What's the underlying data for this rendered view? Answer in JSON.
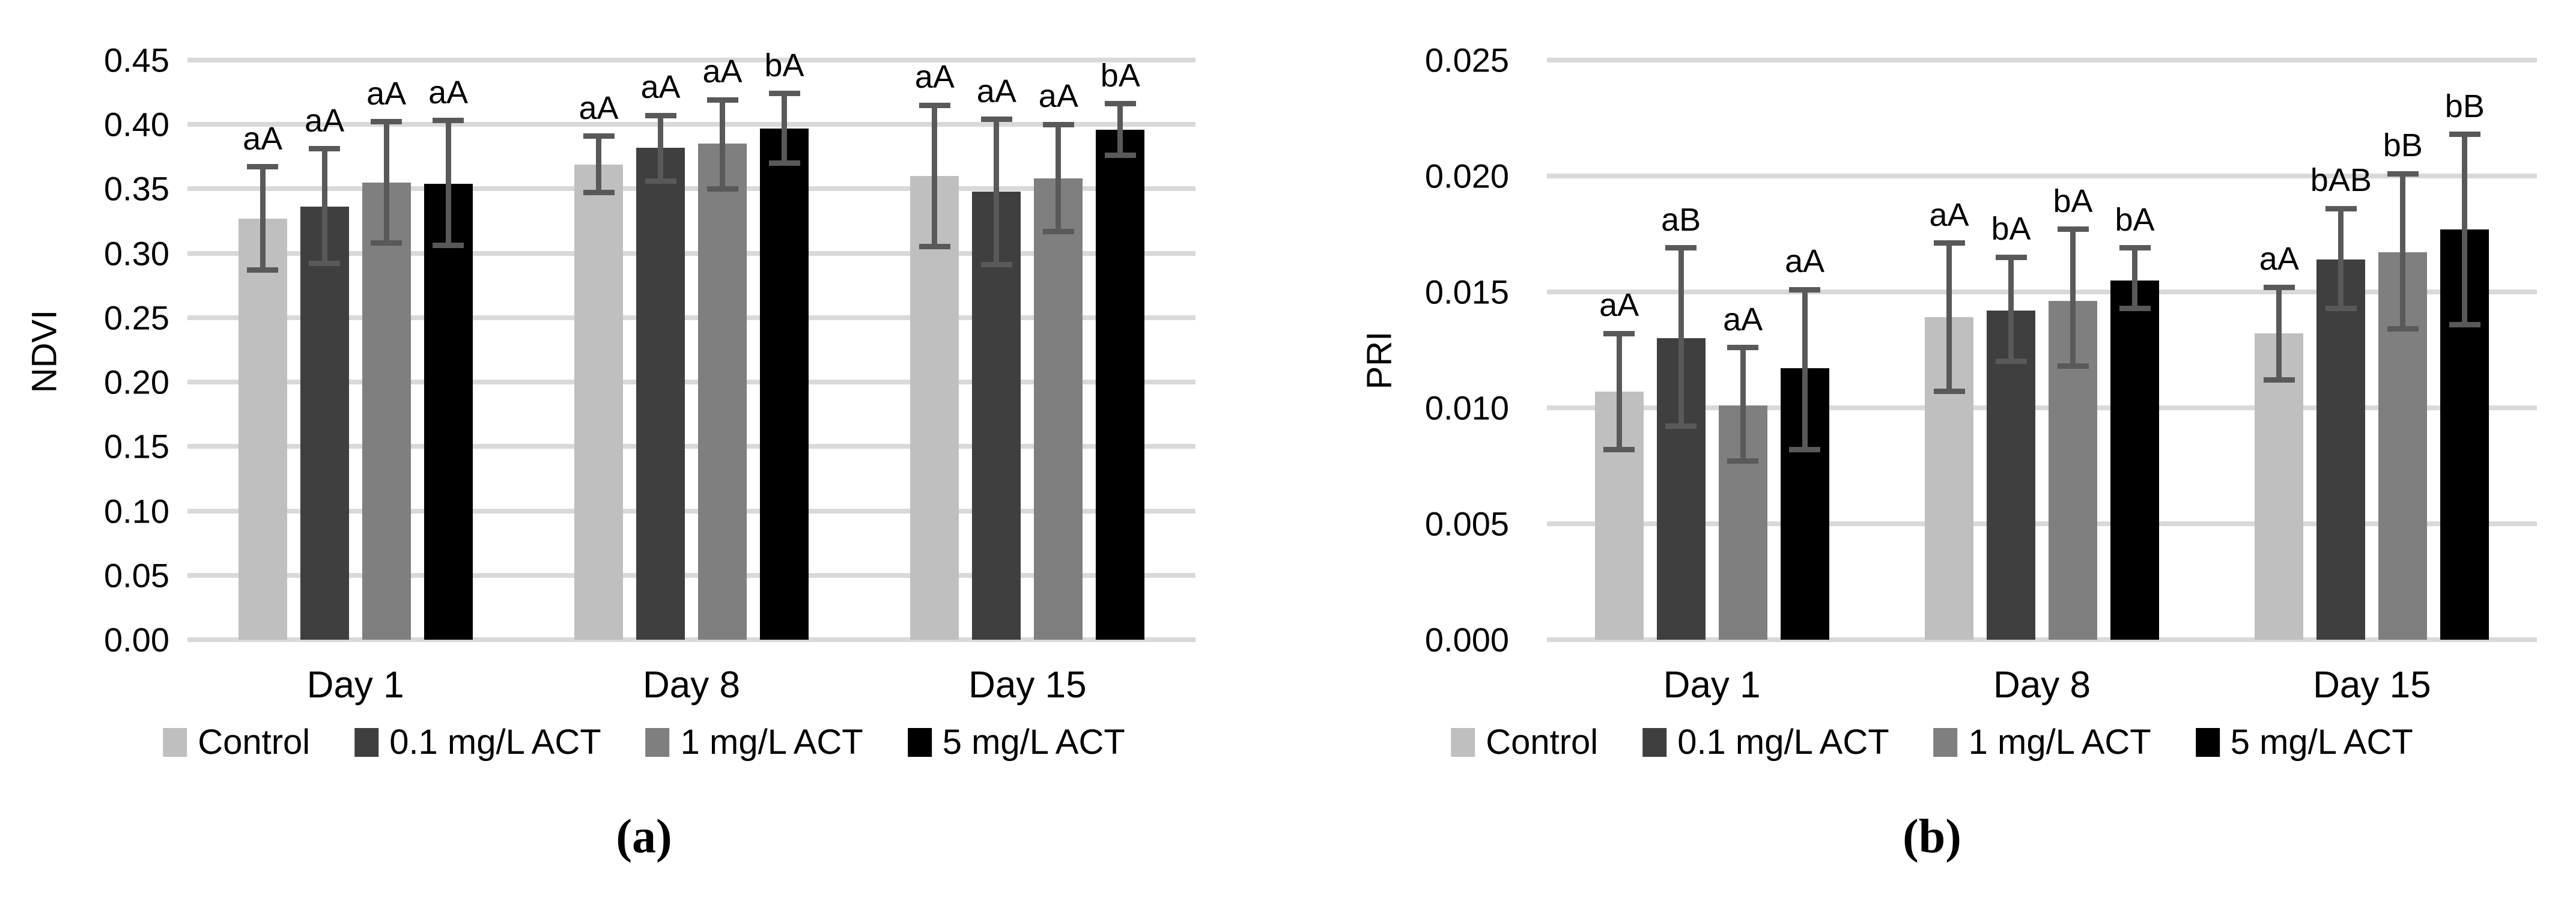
{
  "figure": {
    "captions": [
      "(a)",
      "(b)"
    ],
    "background_color": "#ffffff",
    "gridline_color": "#d9d9d9",
    "error_bar_color": "#595959",
    "text_color": "#000000"
  },
  "chart_data": [
    {
      "type": "bar",
      "title": "",
      "xlabel": "",
      "ylabel": "NDVI",
      "categories": [
        "Day 1",
        "Day 8",
        "Day 15"
      ],
      "ylim": [
        0,
        0.45
      ],
      "ytick_step": 0.05,
      "ytick_labels": [
        "0.45",
        "0.40",
        "0.35",
        "0.30",
        "0.25",
        "0.20",
        "0.15",
        "0.10",
        "0.05",
        "0.00"
      ],
      "grid": true,
      "legend_position": "bottom",
      "series": [
        {
          "name": "Control",
          "color": "#bfbfbf",
          "values": [
            0.327,
            0.369,
            0.36
          ],
          "error_low": [
            0.287,
            0.347,
            0.305
          ],
          "error_high": [
            0.367,
            0.391,
            0.415
          ],
          "sig_labels": [
            "aA",
            "aA",
            "aA"
          ]
        },
        {
          "name": "0.1 mg/L ACT",
          "color": "#3f3f3f",
          "values": [
            0.336,
            0.382,
            0.348
          ],
          "error_low": [
            0.292,
            0.356,
            0.291
          ],
          "error_high": [
            0.381,
            0.407,
            0.404
          ],
          "sig_labels": [
            "aA",
            "aA",
            "aA"
          ]
        },
        {
          "name": "1 mg/L ACT",
          "color": "#7f7f7f",
          "values": [
            0.355,
            0.385,
            0.358
          ],
          "error_low": [
            0.308,
            0.35,
            0.317
          ],
          "error_high": [
            0.402,
            0.419,
            0.4
          ],
          "sig_labels": [
            "aA",
            "aA",
            "aA"
          ]
        },
        {
          "name": "5 mg/L ACT",
          "color": "#000000",
          "values": [
            0.354,
            0.397,
            0.396
          ],
          "error_low": [
            0.306,
            0.37,
            0.376
          ],
          "error_high": [
            0.403,
            0.424,
            0.416
          ],
          "sig_labels": [
            "aA",
            "bA",
            "bA"
          ]
        }
      ]
    },
    {
      "type": "bar",
      "title": "",
      "xlabel": "",
      "ylabel": "PRI",
      "categories": [
        "Day 1",
        "Day 8",
        "Day 15"
      ],
      "ylim": [
        0,
        0.025
      ],
      "ytick_step": 0.005,
      "ytick_labels": [
        "0.025",
        "0.020",
        "0.015",
        "0.010",
        "0.005",
        "0.000"
      ],
      "grid": true,
      "legend_position": "bottom",
      "series": [
        {
          "name": "Control",
          "color": "#bfbfbf",
          "values": [
            0.0107,
            0.0139,
            0.0132
          ],
          "error_low": [
            0.0082,
            0.0107,
            0.0112
          ],
          "error_high": [
            0.0132,
            0.0171,
            0.0152
          ],
          "sig_labels": [
            "aA",
            "aA",
            "aA"
          ]
        },
        {
          "name": "0.1 mg/L ACT",
          "color": "#3f3f3f",
          "values": [
            0.013,
            0.0142,
            0.0164
          ],
          "error_low": [
            0.0092,
            0.012,
            0.0143
          ],
          "error_high": [
            0.0169,
            0.0165,
            0.0186
          ],
          "sig_labels": [
            "aB",
            "bA",
            "bAB"
          ]
        },
        {
          "name": "1 mg/L ACT",
          "color": "#7f7f7f",
          "values": [
            0.0101,
            0.0146,
            0.0167
          ],
          "error_low": [
            0.0077,
            0.0118,
            0.0134
          ],
          "error_high": [
            0.0126,
            0.0177,
            0.0201
          ],
          "sig_labels": [
            "aA",
            "bA",
            "bB"
          ]
        },
        {
          "name": "5 mg/L ACT",
          "color": "#000000",
          "values": [
            0.0117,
            0.0155,
            0.0177
          ],
          "error_low": [
            0.0082,
            0.0143,
            0.0136
          ],
          "error_high": [
            0.0151,
            0.0169,
            0.0218
          ],
          "sig_labels": [
            "aA",
            "bA",
            "bB"
          ]
        }
      ]
    }
  ]
}
